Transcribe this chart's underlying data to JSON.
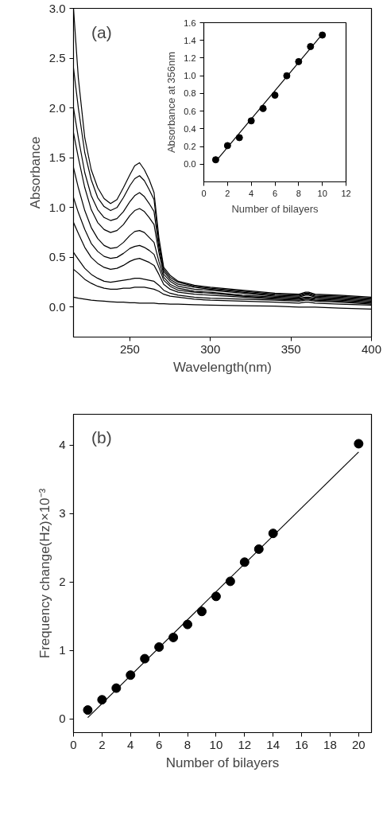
{
  "chart_data": [
    {
      "type": "line",
      "xlabel": "Wavelength(nm)",
      "ylabel": "Absorbance",
      "annotations": [
        "(a)"
      ],
      "x": [
        215,
        218,
        222,
        226,
        230,
        234,
        238,
        242,
        246,
        250,
        253,
        256,
        259,
        262,
        265,
        268,
        271,
        275,
        280,
        290,
        300,
        320,
        340,
        355,
        359,
        361,
        365,
        380,
        400
      ],
      "xlim": [
        215,
        400
      ],
      "ylim": [
        -0.3,
        3.0
      ],
      "xticks": [
        250,
        300,
        350,
        400
      ],
      "yticks": [
        {
          "value": 0,
          "label": "0.0"
        },
        {
          "value": 0.5,
          "label": "0.5"
        },
        {
          "value": 1,
          "label": "1.0"
        },
        {
          "value": 1.5,
          "label": "1.5"
        },
        {
          "value": 2,
          "label": "2.0"
        },
        {
          "value": 2.5,
          "label": "2.5"
        },
        {
          "value": 3,
          "label": "3.0"
        }
      ],
      "series": [
        {
          "color": "#000000",
          "values": [
            3.0,
            2.3,
            1.7,
            1.38,
            1.2,
            1.09,
            1.04,
            1.08,
            1.2,
            1.33,
            1.42,
            1.45,
            1.38,
            1.28,
            1.15,
            0.7,
            0.4,
            0.32,
            0.26,
            0.22,
            0.2,
            0.17,
            0.14,
            0.13,
            0.15,
            0.15,
            0.13,
            0.12,
            0.1
          ]
        },
        {
          "color": "#000000",
          "values": [
            2.4,
            2.0,
            1.55,
            1.28,
            1.1,
            1.01,
            0.97,
            1.0,
            1.1,
            1.22,
            1.29,
            1.32,
            1.27,
            1.18,
            1.08,
            0.65,
            0.38,
            0.3,
            0.25,
            0.21,
            0.19,
            0.16,
            0.13,
            0.12,
            0.14,
            0.14,
            0.12,
            0.11,
            0.09
          ]
        },
        {
          "color": "#000000",
          "values": [
            2.0,
            1.7,
            1.35,
            1.12,
            0.98,
            0.9,
            0.87,
            0.89,
            0.96,
            1.06,
            1.12,
            1.15,
            1.11,
            1.04,
            0.96,
            0.6,
            0.36,
            0.28,
            0.23,
            0.2,
            0.18,
            0.15,
            0.12,
            0.11,
            0.13,
            0.13,
            0.11,
            0.1,
            0.08
          ]
        },
        {
          "color": "#000000",
          "values": [
            1.75,
            1.5,
            1.2,
            0.98,
            0.85,
            0.78,
            0.75,
            0.77,
            0.83,
            0.92,
            0.97,
            0.99,
            0.96,
            0.9,
            0.83,
            0.55,
            0.33,
            0.26,
            0.21,
            0.18,
            0.17,
            0.14,
            0.11,
            0.1,
            0.12,
            0.12,
            0.1,
            0.09,
            0.07
          ]
        },
        {
          "color": "#000000",
          "values": [
            1.4,
            1.2,
            0.97,
            0.8,
            0.69,
            0.62,
            0.59,
            0.6,
            0.65,
            0.72,
            0.76,
            0.77,
            0.75,
            0.7,
            0.65,
            0.46,
            0.3,
            0.23,
            0.19,
            0.16,
            0.15,
            0.12,
            0.1,
            0.09,
            0.1,
            0.1,
            0.09,
            0.08,
            0.06
          ]
        },
        {
          "color": "#000000",
          "values": [
            1.1,
            0.95,
            0.78,
            0.64,
            0.56,
            0.51,
            0.49,
            0.5,
            0.54,
            0.59,
            0.61,
            0.62,
            0.6,
            0.57,
            0.53,
            0.4,
            0.27,
            0.21,
            0.17,
            0.15,
            0.14,
            0.11,
            0.09,
            0.08,
            0.09,
            0.09,
            0.08,
            0.07,
            0.05
          ]
        },
        {
          "color": "#000000",
          "values": [
            0.85,
            0.74,
            0.6,
            0.5,
            0.44,
            0.4,
            0.38,
            0.39,
            0.42,
            0.46,
            0.48,
            0.49,
            0.47,
            0.45,
            0.42,
            0.33,
            0.23,
            0.18,
            0.15,
            0.13,
            0.12,
            0.1,
            0.08,
            0.07,
            0.08,
            0.08,
            0.07,
            0.06,
            0.04
          ]
        },
        {
          "color": "#000000",
          "values": [
            0.55,
            0.48,
            0.39,
            0.33,
            0.29,
            0.26,
            0.25,
            0.26,
            0.27,
            0.28,
            0.29,
            0.29,
            0.28,
            0.27,
            0.26,
            0.22,
            0.17,
            0.14,
            0.12,
            0.1,
            0.09,
            0.08,
            0.07,
            0.06,
            0.07,
            0.07,
            0.06,
            0.05,
            0.03
          ]
        },
        {
          "color": "#000000",
          "values": [
            0.38,
            0.34,
            0.28,
            0.24,
            0.21,
            0.19,
            0.18,
            0.18,
            0.19,
            0.19,
            0.2,
            0.2,
            0.2,
            0.19,
            0.18,
            0.16,
            0.13,
            0.11,
            0.1,
            0.08,
            0.07,
            0.06,
            0.05,
            0.04,
            0.05,
            0.05,
            0.04,
            0.03,
            0.02
          ]
        },
        {
          "color": "#000000",
          "values": [
            0.1,
            0.09,
            0.08,
            0.07,
            0.065,
            0.06,
            0.055,
            0.05,
            0.05,
            0.045,
            0.045,
            0.04,
            0.04,
            0.04,
            0.04,
            0.035,
            0.035,
            0.03,
            0.03,
            0.025,
            0.02,
            0.015,
            0.01,
            0.0,
            0.0,
            0.0,
            0.0,
            -0.01,
            -0.02
          ]
        }
      ]
    },
    {
      "type": "scatter",
      "xlabel": "Number of bilayers",
      "ylabel": "Absorbance at 356nm",
      "xlim": [
        0,
        12
      ],
      "ylim": [
        -0.2,
        1.6
      ],
      "xticks": [
        0,
        2,
        4,
        6,
        8,
        10,
        12
      ],
      "yticks": [
        {
          "value": 0,
          "label": "0.0"
        },
        {
          "value": 0.2,
          "label": "0.2"
        },
        {
          "value": 0.4,
          "label": "0.4"
        },
        {
          "value": 0.6,
          "label": "0.6"
        },
        {
          "value": 0.8,
          "label": "0.8"
        },
        {
          "value": 1,
          "label": "1.0"
        },
        {
          "value": 1.2,
          "label": "1.2"
        },
        {
          "value": 1.4,
          "label": "1.4"
        },
        {
          "value": 1.6,
          "label": "1.6"
        }
      ],
      "series": [
        {
          "type": "scatter",
          "marker": "circle",
          "color": "#000000",
          "x": [
            1,
            2,
            3,
            4,
            5,
            6,
            7,
            8,
            9,
            10
          ],
          "values": [
            0.05,
            0.21,
            0.3,
            0.49,
            0.63,
            0.78,
            1.0,
            1.16,
            1.33,
            1.46
          ]
        },
        {
          "type": "line",
          "color": "#000000",
          "x": [
            1,
            10
          ],
          "values": [
            0.03,
            1.47
          ]
        }
      ]
    },
    {
      "type": "scatter",
      "xlabel": "Number of bilayers",
      "ylabel": "Frequency change(Hz)×10⁻³",
      "annotations": [
        "(b)"
      ],
      "xlim": [
        0,
        20.9
      ],
      "ylim": [
        -0.2,
        4.45
      ],
      "xticks": [
        0,
        2,
        4,
        6,
        8,
        10,
        12,
        14,
        16,
        18,
        20
      ],
      "yticks": [
        0,
        1,
        2,
        3,
        4
      ],
      "series": [
        {
          "type": "scatter",
          "marker": "circle",
          "color": "#000000",
          "x": [
            1,
            2,
            3,
            4,
            5,
            6,
            7,
            8,
            9,
            10,
            11,
            12,
            13,
            14,
            20
          ],
          "values": [
            0.13,
            0.28,
            0.45,
            0.64,
            0.88,
            1.05,
            1.19,
            1.38,
            1.57,
            1.79,
            2.01,
            2.29,
            2.48,
            2.71,
            4.02
          ]
        },
        {
          "type": "line",
          "color": "#000000",
          "x": [
            1,
            20
          ],
          "values": [
            0.02,
            3.9
          ]
        }
      ]
    }
  ]
}
